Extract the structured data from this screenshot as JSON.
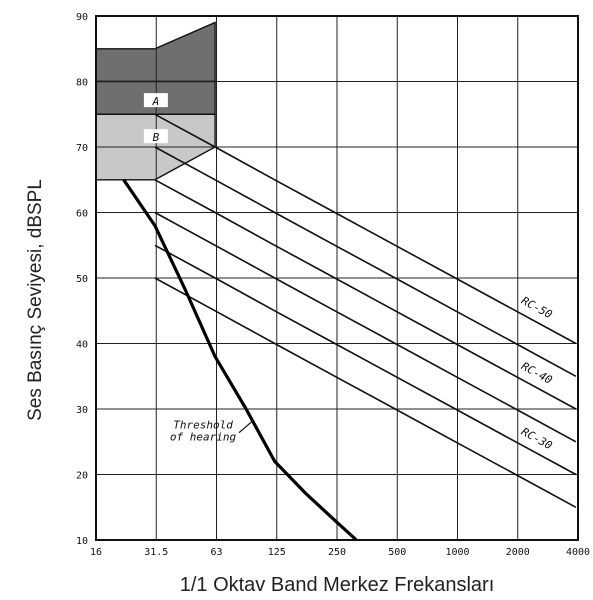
{
  "chart_data": {
    "type": "line",
    "xlabel": "1/1 Oktav Band Merkez Frekansları",
    "ylabel": "Ses Basınç Seviyesi, dBSPL",
    "x_ticks": [
      "16",
      "31.5",
      "63",
      "125",
      "250",
      "500",
      "1000",
      "2000",
      "4000"
    ],
    "y_ticks": [
      10,
      20,
      30,
      40,
      50,
      60,
      70,
      80,
      90
    ],
    "ylim": [
      10,
      90
    ],
    "x_scale": "octave",
    "grid": true,
    "series": [
      {
        "name": "RC-50",
        "x": [
          "31.5",
          "63",
          "125",
          "250",
          "500",
          "1000",
          "2000",
          "4000"
        ],
        "y": [
          75,
          70,
          65,
          60,
          55,
          50,
          45,
          40
        ]
      },
      {
        "name": "",
        "x": [
          "31.5",
          "63",
          "125",
          "250",
          "500",
          "1000",
          "2000",
          "4000"
        ],
        "y": [
          70,
          65,
          60,
          55,
          50,
          45,
          40,
          35
        ]
      },
      {
        "name": "RC-40",
        "x": [
          "31.5",
          "63",
          "125",
          "250",
          "500",
          "1000",
          "2000",
          "4000"
        ],
        "y": [
          65,
          60,
          55,
          50,
          45,
          40,
          35,
          30
        ]
      },
      {
        "name": "",
        "x": [
          "31.5",
          "63",
          "125",
          "250",
          "500",
          "1000",
          "2000",
          "4000"
        ],
        "y": [
          60,
          55,
          50,
          45,
          40,
          35,
          30,
          25
        ]
      },
      {
        "name": "RC-30",
        "x": [
          "31.5",
          "63",
          "125",
          "250",
          "500",
          "1000",
          "2000",
          "4000"
        ],
        "y": [
          55,
          50,
          45,
          40,
          35,
          30,
          25,
          20
        ]
      },
      {
        "name": "",
        "x": [
          "31.5",
          "63",
          "125",
          "250",
          "500",
          "1000",
          "2000",
          "4000"
        ],
        "y": [
          50,
          45,
          40,
          35,
          30,
          25,
          20,
          15
        ]
      }
    ],
    "threshold_of_hearing": {
      "label": "Threshold of hearing",
      "x": [
        22,
        31.5,
        45,
        63,
        90,
        125,
        180,
        250,
        320
      ],
      "y": [
        65,
        58,
        48,
        38,
        30,
        22,
        17,
        13,
        10
      ]
    },
    "regions": [
      {
        "label": "A",
        "fill": "#6f6f6f",
        "points": [
          [
            16,
            85
          ],
          [
            31.5,
            85
          ],
          [
            63,
            89
          ],
          [
            63,
            80
          ],
          [
            31.5,
            80
          ],
          [
            16,
            80
          ]
        ]
      },
      {
        "label": "",
        "fill": "#6f6f6f",
        "points": [
          [
            16,
            80
          ],
          [
            31.5,
            80
          ],
          [
            63,
            80
          ],
          [
            63,
            75
          ],
          [
            31.5,
            75
          ],
          [
            16,
            75
          ]
        ]
      },
      {
        "label": "B",
        "fill": "#c8c8c8",
        "points": [
          [
            16,
            75
          ],
          [
            31.5,
            75
          ],
          [
            63,
            75
          ],
          [
            63,
            70
          ],
          [
            31.5,
            65
          ],
          [
            16,
            65
          ]
        ]
      }
    ]
  }
}
